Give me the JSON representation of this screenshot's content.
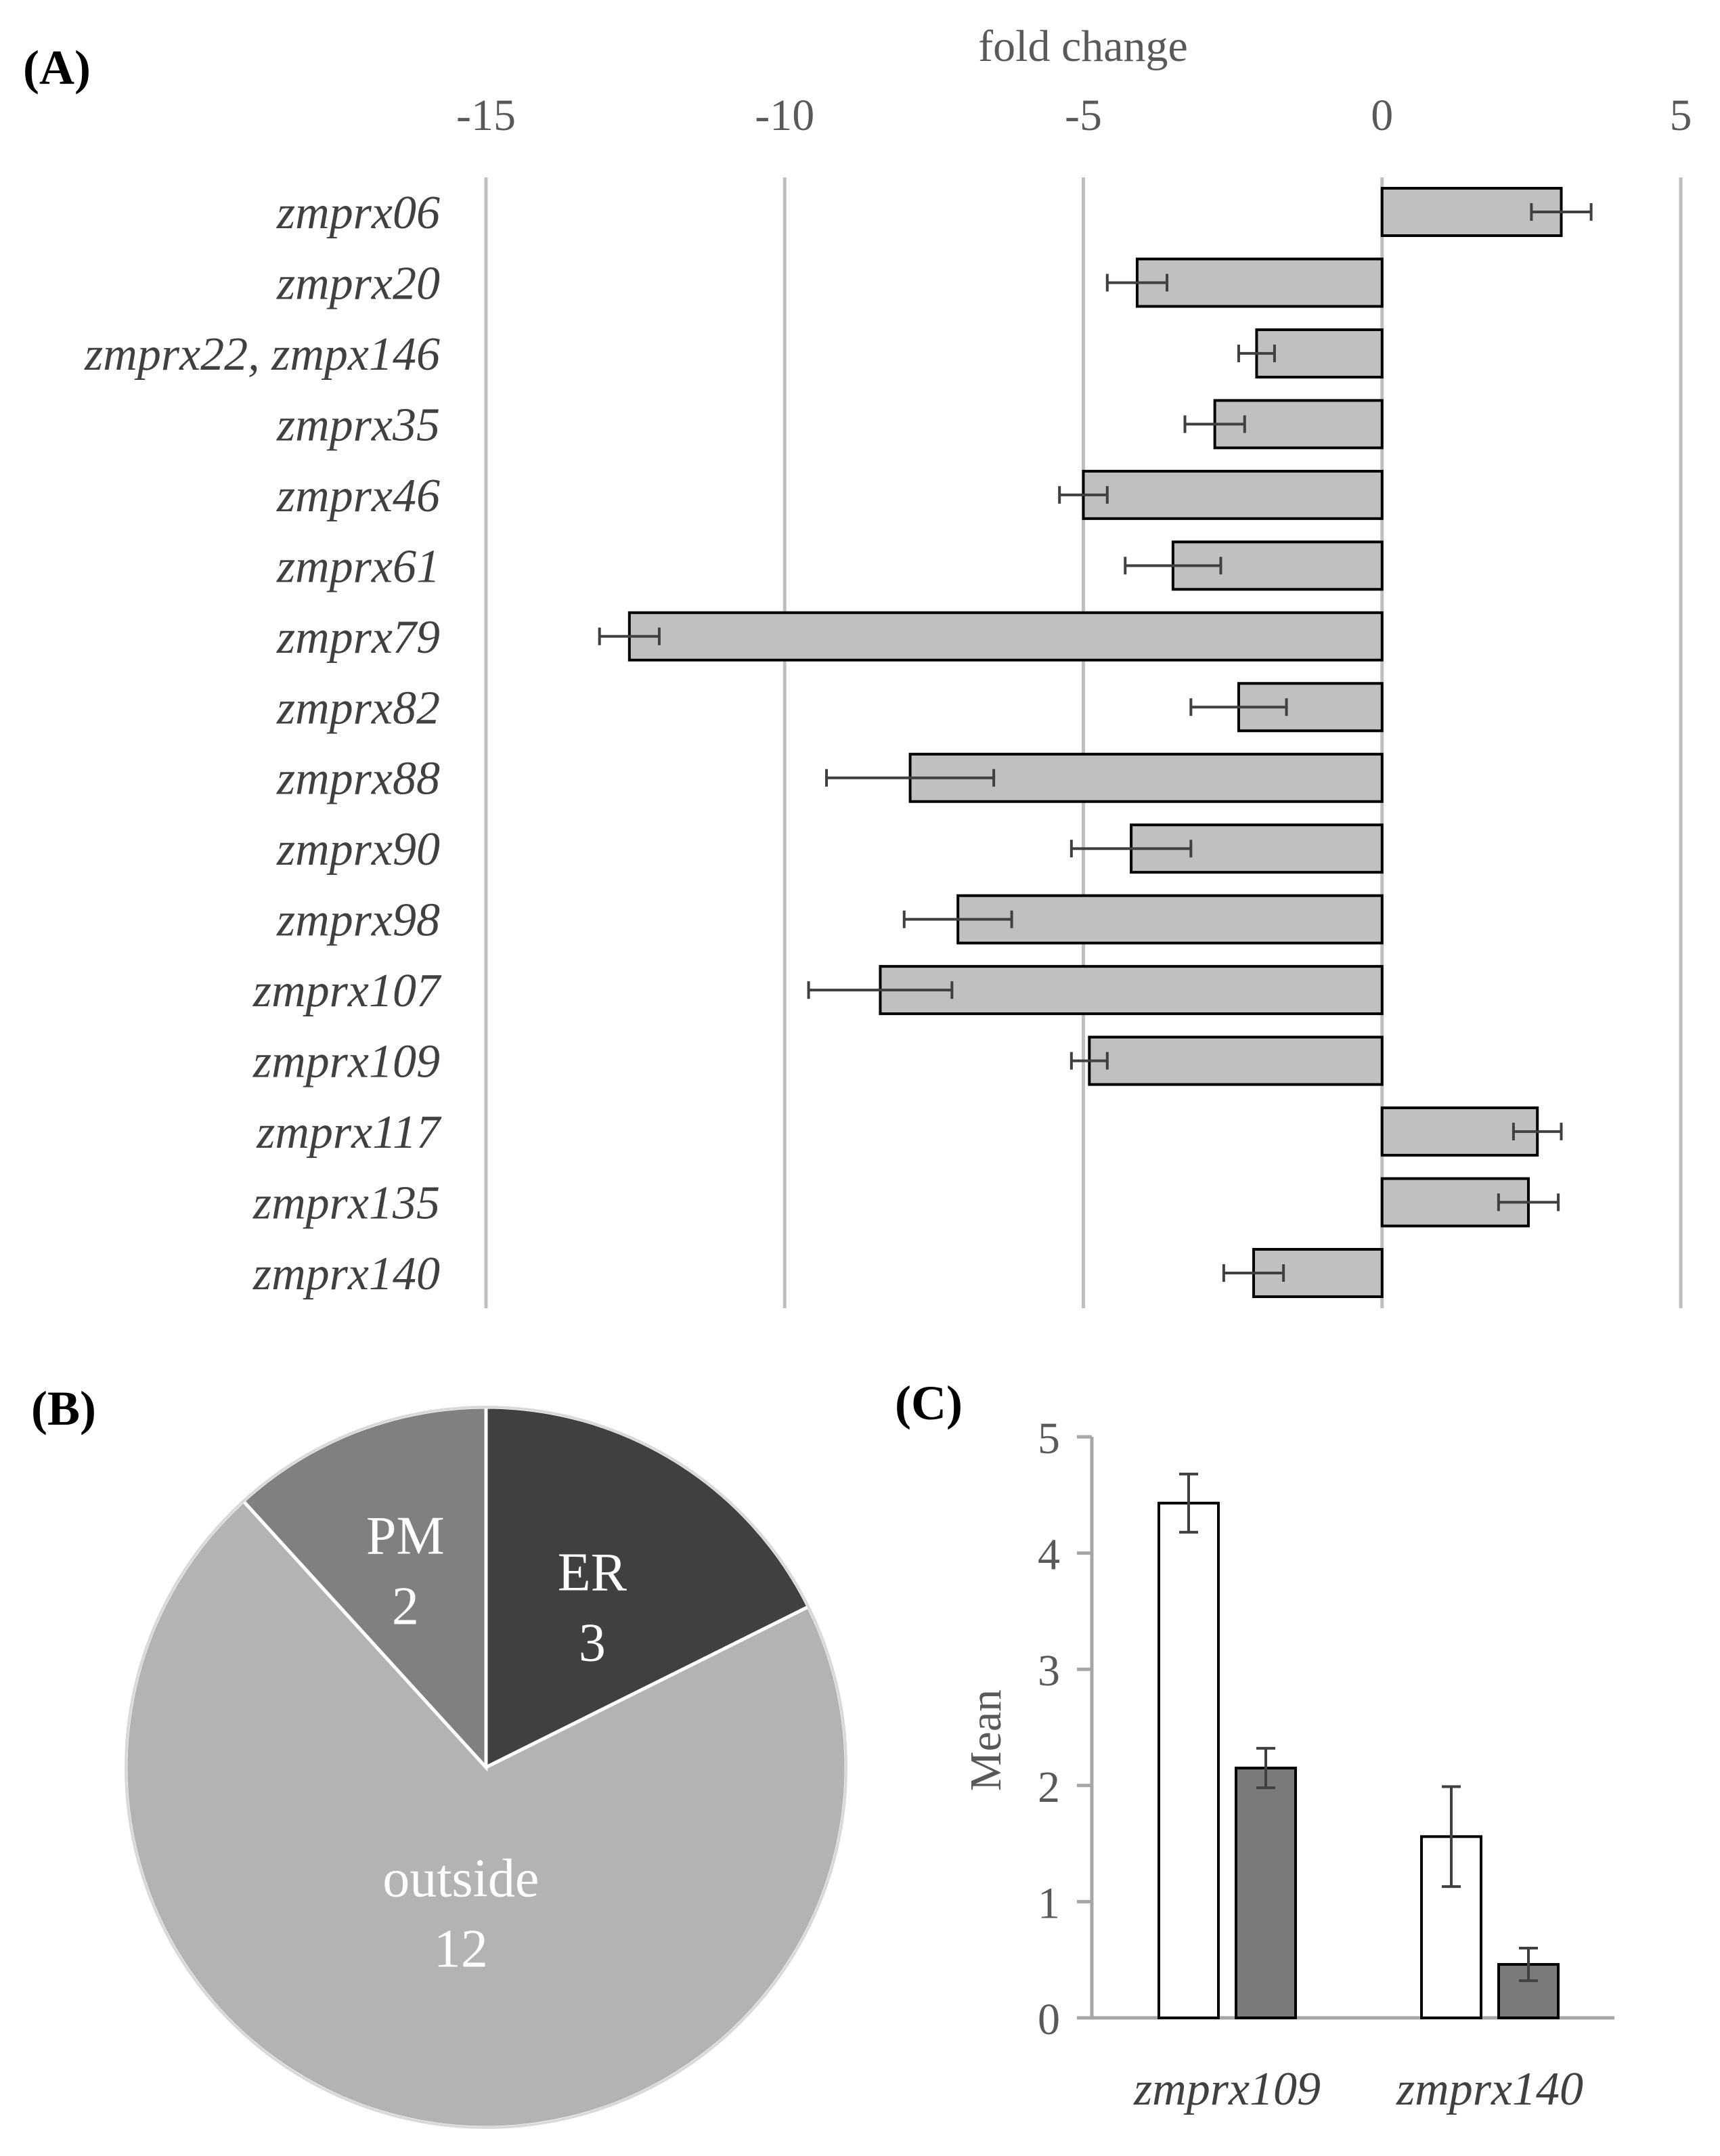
{
  "chart_data": [
    {
      "panel": "(A)",
      "type": "bar",
      "orientation": "horizontal",
      "title": "fold change",
      "xlim": [
        -15,
        5
      ],
      "xticks": [
        -15,
        -10,
        -5,
        0,
        5
      ],
      "grid": true,
      "categories": [
        "zmprx06",
        "zmprx20",
        "zmprx22, zmpx146",
        "zmprx35",
        "zmprx46",
        "zmprx61",
        "zmprx79",
        "zmprx82",
        "zmprx88",
        "zmprx90",
        "zmprx98",
        "zmprx107",
        "zmprx109",
        "zmprx117",
        "zmprx135",
        "zmprx140"
      ],
      "values": [
        3.0,
        -4.1,
        -2.1,
        -2.8,
        -5.0,
        -3.5,
        -12.6,
        -2.4,
        -7.9,
        -4.2,
        -7.1,
        -8.4,
        -4.9,
        2.6,
        2.45,
        -2.15
      ],
      "errors": [
        0.5,
        0.5,
        0.3,
        0.5,
        0.4,
        0.8,
        0.5,
        0.8,
        1.4,
        1.0,
        0.9,
        1.2,
        0.3,
        0.4,
        0.5,
        0.5
      ],
      "colors": {
        "bar": "#c0c0c0",
        "edge": "#000000",
        "grid": "#bfbfbf",
        "error": "#404040"
      }
    },
    {
      "panel": "(B)",
      "type": "pie",
      "slices": [
        {
          "label": "ER",
          "value": 3,
          "color": "#404040"
        },
        {
          "label": "outside",
          "value": 12,
          "color": "#b3b3b3"
        },
        {
          "label": "PM",
          "value": 2,
          "color": "#808080"
        }
      ]
    },
    {
      "panel": "(C)",
      "type": "bar",
      "ylabel": "Mean",
      "ylim": [
        0,
        5
      ],
      "yticks": [
        0,
        1,
        2,
        3,
        4,
        5
      ],
      "categories": [
        "zmprx109",
        "zmprx140"
      ],
      "series": [
        {
          "values": [
            4.43,
            1.56
          ],
          "errors": [
            0.25,
            0.43
          ],
          "color": "#ffffff"
        },
        {
          "values": [
            2.15,
            0.46
          ],
          "errors": [
            0.17,
            0.14
          ],
          "color": "#7a7a7a"
        }
      ]
    }
  ]
}
